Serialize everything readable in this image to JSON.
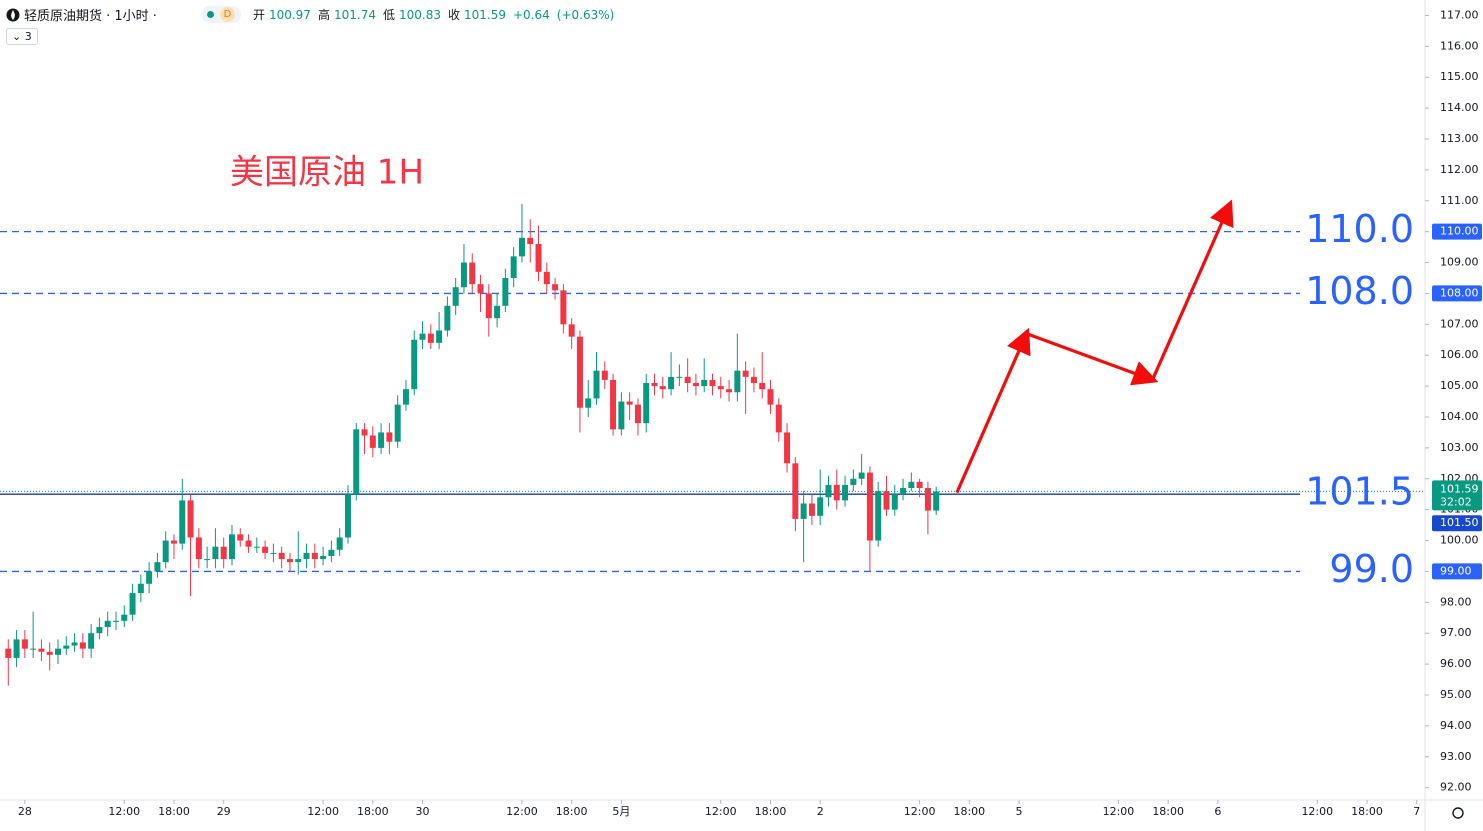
{
  "header": {
    "symbol": "轻质原油期货 · 1小时 ·",
    "badge": "D",
    "open_label": "开",
    "open": "=100.97",
    "high_label": "高",
    "high": "=101.74",
    "low_label": "低",
    "low": "=100.83",
    "close_label": "收",
    "close": "=101.59",
    "change": "+0.64",
    "change_pct": "(+0.63%)",
    "indicators": "3"
  },
  "chart_data": {
    "type": "candlestick",
    "title": "美国原油 1H",
    "up_color": "#089981",
    "down_color": "#f23645",
    "x": [
      -2,
      -1,
      0,
      1,
      2,
      3,
      4,
      5,
      6,
      7,
      8,
      9,
      10,
      11,
      12,
      13,
      14,
      15,
      16,
      17,
      18,
      19,
      20,
      21,
      22,
      23,
      24,
      25,
      26,
      27,
      28,
      29,
      30,
      31,
      32,
      33,
      34,
      35,
      36,
      37,
      38,
      39,
      40,
      41,
      42,
      43,
      44,
      45,
      46,
      47,
      48,
      49,
      50,
      51,
      52,
      53,
      54,
      55,
      56,
      57,
      58,
      59,
      60,
      61,
      62,
      63,
      64,
      65,
      66,
      67,
      68,
      69,
      70,
      71,
      72,
      73,
      74,
      75,
      76,
      77,
      78,
      79,
      80,
      81,
      82,
      83,
      84,
      85,
      86,
      87,
      88,
      89,
      90,
      91,
      92,
      93,
      94,
      95,
      96,
      97,
      98,
      99,
      100,
      101,
      102,
      103,
      104,
      105,
      106,
      107,
      108,
      109,
      110
    ],
    "open": [
      96.5,
      96.2,
      96.8,
      96.5,
      96.5,
      96.4,
      96.3,
      96.5,
      96.6,
      96.7,
      96.5,
      97.0,
      97.2,
      97.4,
      97.4,
      97.6,
      98.3,
      98.6,
      99.0,
      99.3,
      100.0,
      99.9,
      101.3,
      100.1,
      99.4,
      99.4,
      99.8,
      99.4,
      100.2,
      100.0,
      99.8,
      99.8,
      99.6,
      99.6,
      99.4,
      99.3,
      99.4,
      99.6,
      99.4,
      99.5,
      99.7,
      100.1,
      101.5,
      103.6,
      103.4,
      103.0,
      103.5,
      103.2,
      104.4,
      104.9,
      106.5,
      106.7,
      106.4,
      106.8,
      107.6,
      108.2,
      109.0,
      108.3,
      108.0,
      107.2,
      107.6,
      108.5,
      109.2,
      109.8,
      109.6,
      108.7,
      108.3,
      108.1,
      107.0,
      106.6,
      104.3,
      104.6,
      105.5,
      105.2,
      103.6,
      104.5,
      104.4,
      103.8,
      105.1,
      105.0,
      104.9,
      105.3,
      105.3,
      105.1,
      105.0,
      105.2,
      105.0,
      104.9,
      104.8,
      105.5,
      105.3,
      105.1,
      104.9,
      104.4,
      103.5,
      102.5,
      100.7,
      101.2,
      100.8,
      101.4,
      101.8,
      101.3,
      101.8,
      102.0,
      102.2,
      100.0,
      101.6,
      101.0,
      101.5,
      101.7,
      101.9,
      101.7,
      100.97
    ],
    "high": [
      96.8,
      97.1,
      97.1,
      97.7,
      96.8,
      96.7,
      96.8,
      96.9,
      97.0,
      97.0,
      97.3,
      97.5,
      97.7,
      97.7,
      97.9,
      98.6,
      98.9,
      99.3,
      99.6,
      100.3,
      100.2,
      102.0,
      101.5,
      100.4,
      99.8,
      100.4,
      100.1,
      100.5,
      100.4,
      100.2,
      100.1,
      100.0,
      99.9,
      99.8,
      99.6,
      100.3,
      99.9,
      99.9,
      99.8,
      100.0,
      100.4,
      101.8,
      103.8,
      103.8,
      103.7,
      103.8,
      103.8,
      104.7,
      105.2,
      106.8,
      107.1,
      107.0,
      107.4,
      107.9,
      108.5,
      109.6,
      109.3,
      108.6,
      108.3,
      108.0,
      108.8,
      109.5,
      110.9,
      110.4,
      110.2,
      109.0,
      108.5,
      108.3,
      107.2,
      106.8,
      105.2,
      106.1,
      105.8,
      105.4,
      104.8,
      104.8,
      104.6,
      105.4,
      105.4,
      105.3,
      106.1,
      105.7,
      105.9,
      105.4,
      105.9,
      105.4,
      105.3,
      105.2,
      106.7,
      105.8,
      105.6,
      106.1,
      105.2,
      104.6,
      103.8,
      102.7,
      101.6,
      101.5,
      102.3,
      102.1,
      102.3,
      102.1,
      102.3,
      102.8,
      102.4,
      101.9,
      102.1,
      101.8,
      102.0,
      102.2,
      102.0,
      101.9,
      101.74
    ],
    "low": [
      95.3,
      95.9,
      96.2,
      96.2,
      96.1,
      95.8,
      96.0,
      96.3,
      96.4,
      96.2,
      96.2,
      96.8,
      96.9,
      97.1,
      97.2,
      97.4,
      98.0,
      98.3,
      98.8,
      99.1,
      99.4,
      99.7,
      98.2,
      99.1,
      99.1,
      99.1,
      99.1,
      99.2,
      99.8,
      99.6,
      99.6,
      99.4,
      99.3,
      99.1,
      99.0,
      98.9,
      99.1,
      99.1,
      99.2,
      99.3,
      99.5,
      99.9,
      101.3,
      102.8,
      102.7,
      102.8,
      102.8,
      103.0,
      104.2,
      104.7,
      106.2,
      106.2,
      106.2,
      106.6,
      107.3,
      108.0,
      108.0,
      107.4,
      106.6,
      106.9,
      107.4,
      108.2,
      109.0,
      109.0,
      108.4,
      108.0,
      107.8,
      106.7,
      106.2,
      103.5,
      104.0,
      104.4,
      104.9,
      103.4,
      103.4,
      103.9,
      103.4,
      103.5,
      104.7,
      104.6,
      104.7,
      105.0,
      104.8,
      104.7,
      104.8,
      104.7,
      104.6,
      104.5,
      104.5,
      104.1,
      104.8,
      104.6,
      104.1,
      103.2,
      102.2,
      100.3,
      99.3,
      100.5,
      100.5,
      101.1,
      101.0,
      101.1,
      101.6,
      101.8,
      99.0,
      99.8,
      100.8,
      100.8,
      101.3,
      101.6,
      101.4,
      100.2,
      100.83
    ],
    "close": [
      96.2,
      96.8,
      96.5,
      96.5,
      96.4,
      96.3,
      96.5,
      96.6,
      96.7,
      96.5,
      97.0,
      97.2,
      97.4,
      97.4,
      97.6,
      98.3,
      98.6,
      99.0,
      99.3,
      100.0,
      99.9,
      101.3,
      100.1,
      99.4,
      99.4,
      99.8,
      99.4,
      100.2,
      100.0,
      99.8,
      99.8,
      99.6,
      99.6,
      99.4,
      99.3,
      99.4,
      99.6,
      99.4,
      99.5,
      99.7,
      100.1,
      101.5,
      103.6,
      103.4,
      103.0,
      103.5,
      103.2,
      104.4,
      104.9,
      106.5,
      106.7,
      106.4,
      106.8,
      107.6,
      108.2,
      109.0,
      108.3,
      108.0,
      107.2,
      107.6,
      108.5,
      109.2,
      109.8,
      109.6,
      108.7,
      108.3,
      108.1,
      107.0,
      106.6,
      104.3,
      104.6,
      105.5,
      105.2,
      103.6,
      104.5,
      104.4,
      103.8,
      105.1,
      105.0,
      104.9,
      105.3,
      105.3,
      105.1,
      105.0,
      105.2,
      105.0,
      104.9,
      104.8,
      105.5,
      105.3,
      105.1,
      104.9,
      104.4,
      103.5,
      102.5,
      100.7,
      101.2,
      100.8,
      101.4,
      101.8,
      101.3,
      101.8,
      102.0,
      102.2,
      100.0,
      101.6,
      101.0,
      101.5,
      101.7,
      101.9,
      101.7,
      100.97,
      101.59
    ],
    "xlim": [
      -3,
      169
    ],
    "ylim": [
      91.6,
      117.5
    ],
    "xticks": [
      {
        "value": 0,
        "label": "28"
      },
      {
        "value": 12,
        "label": "12:00"
      },
      {
        "value": 18,
        "label": "18:00"
      },
      {
        "value": 24,
        "label": "29"
      },
      {
        "value": 36,
        "label": "12:00"
      },
      {
        "value": 42,
        "label": "18:00"
      },
      {
        "value": 48,
        "label": "30"
      },
      {
        "value": 60,
        "label": "12:00"
      },
      {
        "value": 66,
        "label": "18:00"
      },
      {
        "value": 72,
        "label": "5月"
      },
      {
        "value": 84,
        "label": "12:00"
      },
      {
        "value": 90,
        "label": "18:00"
      },
      {
        "value": 96,
        "label": "2"
      },
      {
        "value": 108,
        "label": "12:00"
      },
      {
        "value": 114,
        "label": "18:00"
      },
      {
        "value": 120,
        "label": "5"
      },
      {
        "value": 132,
        "label": "12:00"
      },
      {
        "value": 138,
        "label": "18:00"
      },
      {
        "value": 144,
        "label": "6"
      },
      {
        "value": 156,
        "label": "12:00"
      },
      {
        "value": 162,
        "label": "18:00"
      },
      {
        "value": 168,
        "label": "7"
      }
    ],
    "yticks": [
      {
        "value": 92,
        "label": "92.00"
      },
      {
        "value": 93,
        "label": "93.00"
      },
      {
        "value": 94,
        "label": "94.00"
      },
      {
        "value": 95,
        "label": "95.00"
      },
      {
        "value": 96,
        "label": "96.00"
      },
      {
        "value": 97,
        "label": "97.00"
      },
      {
        "value": 98,
        "label": "98.00"
      },
      {
        "value": 99,
        "label": "99.00"
      },
      {
        "value": 100,
        "label": "100.00"
      },
      {
        "value": 101,
        "label": "101.00"
      },
      {
        "value": 102,
        "label": "102.00"
      },
      {
        "value": 103,
        "label": "103.00"
      },
      {
        "value": 104,
        "label": "104.00"
      },
      {
        "value": 105,
        "label": "105.00"
      },
      {
        "value": 106,
        "label": "106.00"
      },
      {
        "value": 107,
        "label": "107.00"
      },
      {
        "value": 108,
        "label": "108.00"
      },
      {
        "value": 109,
        "label": "109.00"
      },
      {
        "value": 110,
        "label": "110.00"
      },
      {
        "value": 111,
        "label": "111.00"
      },
      {
        "value": 112,
        "label": "112.00"
      },
      {
        "value": 113,
        "label": "113.00"
      },
      {
        "value": 114,
        "label": "114.00"
      },
      {
        "value": 115,
        "label": "115.00"
      },
      {
        "value": 116,
        "label": "116.00"
      },
      {
        "value": 117,
        "label": "117.00"
      }
    ],
    "levels": [
      {
        "value": 110,
        "label": "110.0",
        "badge": "110.00",
        "style": "dashed"
      },
      {
        "value": 108,
        "label": "108.0",
        "badge": "108.00",
        "style": "dashed"
      },
      {
        "value": 101.5,
        "label": "101.5",
        "badge": "101.50",
        "style": "solid"
      },
      {
        "value": 99,
        "label": "99.0",
        "badge": "99.00",
        "style": "dashed"
      }
    ],
    "level_color": "#2962ff",
    "last_price": {
      "value": 101.59,
      "label": "101.59",
      "countdown": "32:02"
    },
    "projection": {
      "color": "#f20d0d",
      "x": [
        112.5,
        120.9,
        136.1,
        145.4
      ],
      "y": [
        101.55,
        106.7,
        105.2,
        110.85
      ]
    }
  }
}
